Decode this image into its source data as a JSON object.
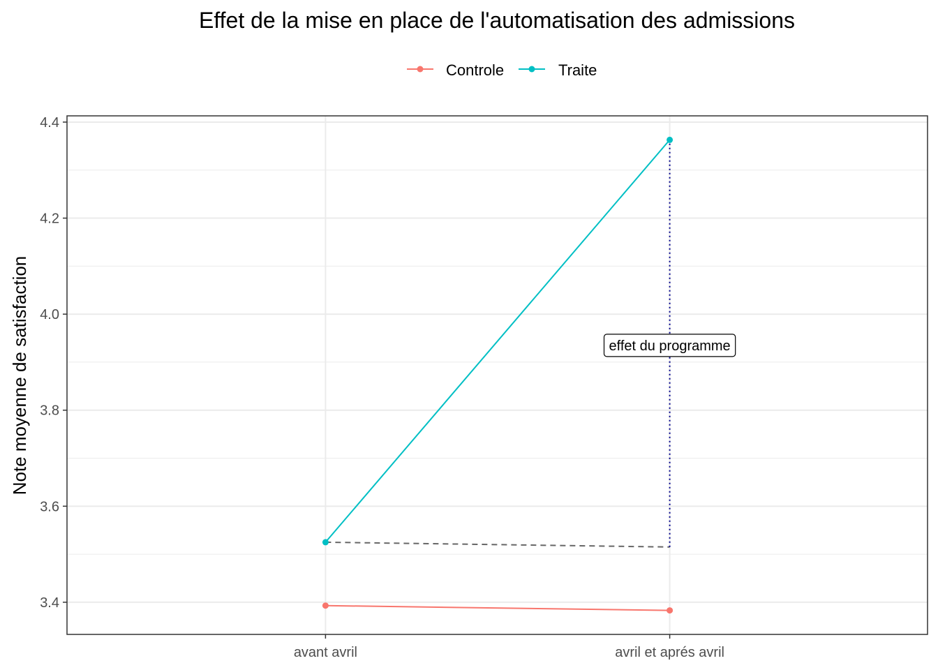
{
  "chart_data": {
    "type": "line",
    "title": "Effet de la mise en place de l'automatisation des admissions",
    "xlabel": "",
    "ylabel": "Note moyenne de satisfaction",
    "categories": [
      "avant avril",
      "avril et aprés avril"
    ],
    "series": [
      {
        "name": "Controle",
        "color": "#F8766D",
        "values": [
          3.393,
          3.383
        ]
      },
      {
        "name": "Traite",
        "color": "#00BFC4",
        "values": [
          3.525,
          4.363
        ]
      }
    ],
    "counterfactual": {
      "style": "dashed",
      "color": "#666666",
      "values": [
        3.525,
        3.515
      ]
    },
    "effect_line": {
      "style": "dotted",
      "color": "#00008B",
      "category": "avril et aprés avril",
      "from": 3.515,
      "to": 4.363
    },
    "annotation": {
      "text": "effet du programme",
      "category": "avril et aprés avril",
      "y": 3.935
    },
    "ylim": [
      3.333,
      4.413
    ],
    "yticks": [
      3.4,
      3.6,
      3.8,
      4.0,
      4.2,
      4.4
    ],
    "ytick_labels": [
      "3.4",
      "3.6",
      "3.8",
      "4.0",
      "4.2",
      "4.4"
    ],
    "grid": true,
    "legend_position": "top"
  }
}
